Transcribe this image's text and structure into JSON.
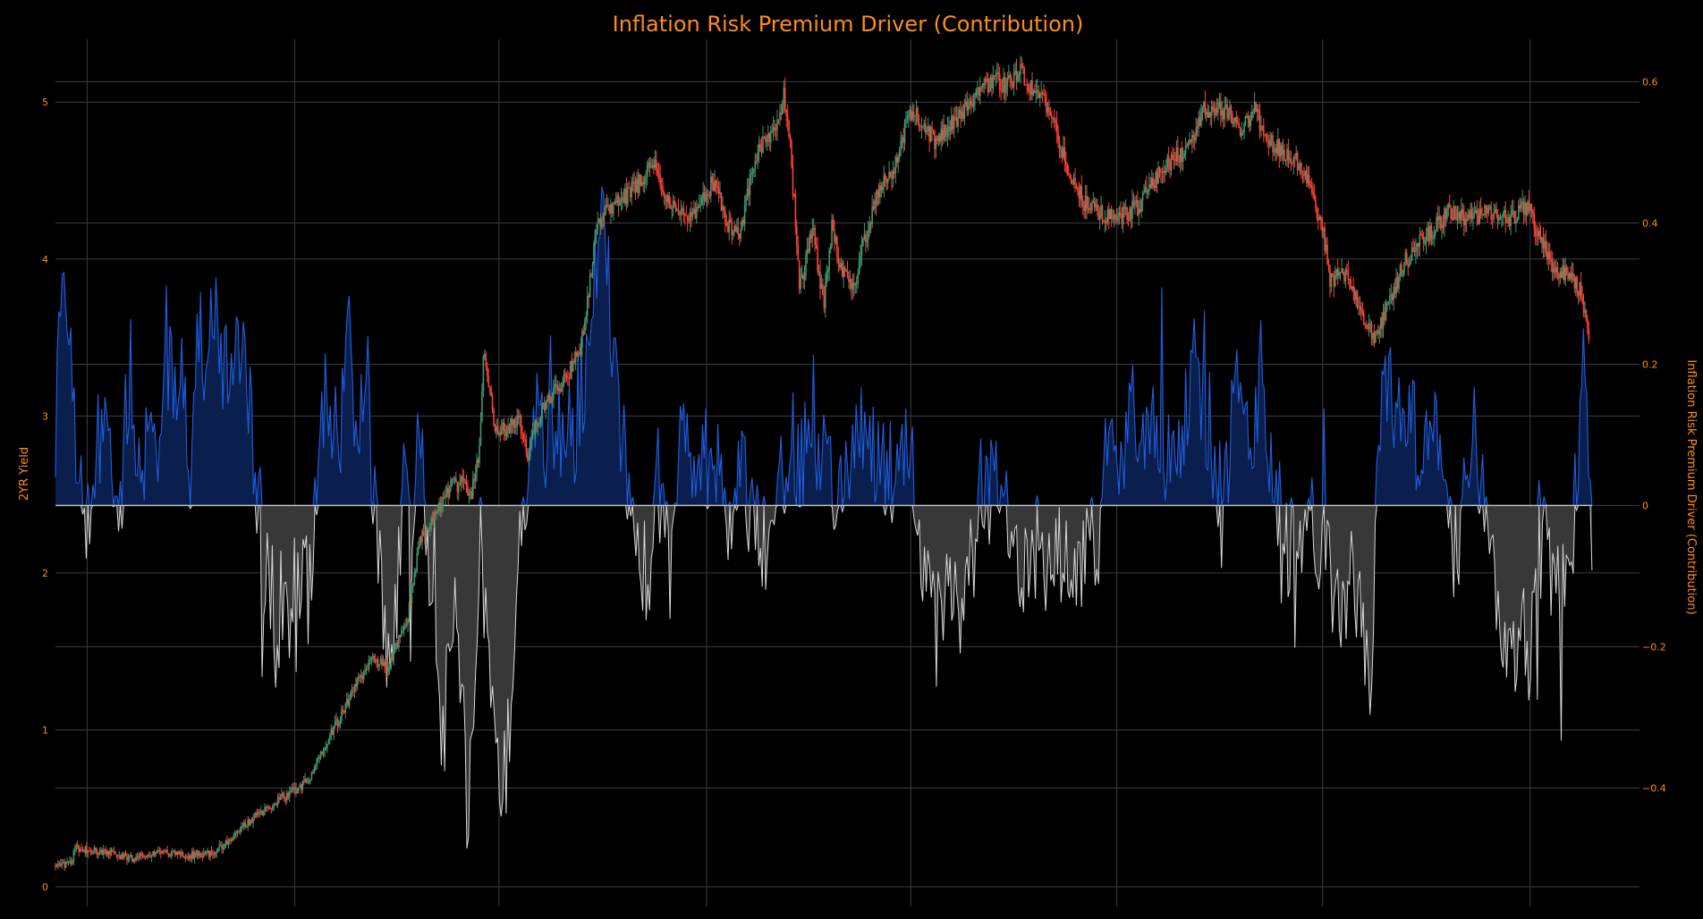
{
  "chart_data": {
    "type": "candlestick+area",
    "title": "Inflation Risk Premium Driver (Contribution)",
    "left_axis": {
      "label": "2YR Yield",
      "range": [
        0,
        5.4
      ],
      "ticks": [
        0,
        1,
        2,
        3,
        4,
        5
      ]
    },
    "right_axis": {
      "label": "Inflation Risk Premium Driver (Contribution)",
      "range": [
        -0.54,
        0.66
      ],
      "ticks": [
        -0.4,
        -0.2,
        0,
        0.2,
        0.4,
        0.6
      ],
      "tick_labels": [
        "−0.4",
        "−0.2",
        "0",
        "0.2",
        "0.4",
        "0.6"
      ]
    },
    "x_axis": {
      "range": [
        0,
        1
      ],
      "gridlines": [
        0.02,
        0.151,
        0.28,
        0.411,
        0.54,
        0.67,
        0.8,
        0.931
      ],
      "tick_labels": []
    },
    "grid": true,
    "colors": {
      "up": "#3d9970",
      "down": "#ff4136",
      "positive_line": "#1f5fe0",
      "positive_fill": "#0a1f4d",
      "negative_line": "#d9d9d9",
      "negative_fill": "#383838",
      "zero_line": "#c8c8c8",
      "accent": "#ff8c1a"
    },
    "yield_anchors": [
      [
        0,
        0.14
      ],
      [
        0.01,
        0.14
      ],
      [
        0.012,
        0.25
      ],
      [
        0.03,
        0.22
      ],
      [
        0.05,
        0.18
      ],
      [
        0.07,
        0.22
      ],
      [
        0.085,
        0.2
      ],
      [
        0.1,
        0.22
      ],
      [
        0.115,
        0.35
      ],
      [
        0.13,
        0.48
      ],
      [
        0.145,
        0.58
      ],
      [
        0.16,
        0.68
      ],
      [
        0.17,
        0.9
      ],
      [
        0.178,
        1.05
      ],
      [
        0.19,
        1.3
      ],
      [
        0.2,
        1.45
      ],
      [
        0.21,
        1.4
      ],
      [
        0.222,
        1.7
      ],
      [
        0.23,
        2.2
      ],
      [
        0.238,
        2.35
      ],
      [
        0.25,
        2.55
      ],
      [
        0.258,
        2.58
      ],
      [
        0.262,
        2.48
      ],
      [
        0.268,
        2.8
      ],
      [
        0.27,
        3.4
      ],
      [
        0.278,
        2.9
      ],
      [
        0.285,
        2.92
      ],
      [
        0.292,
        3.0
      ],
      [
        0.298,
        2.75
      ],
      [
        0.305,
        3.0
      ],
      [
        0.312,
        3.1
      ],
      [
        0.325,
        3.3
      ],
      [
        0.333,
        3.5
      ],
      [
        0.34,
        4.1
      ],
      [
        0.345,
        4.3
      ],
      [
        0.36,
        4.4
      ],
      [
        0.37,
        4.5
      ],
      [
        0.377,
        4.62
      ],
      [
        0.385,
        4.4
      ],
      [
        0.395,
        4.3
      ],
      [
        0.405,
        4.3
      ],
      [
        0.415,
        4.5
      ],
      [
        0.425,
        4.2
      ],
      [
        0.432,
        4.15
      ],
      [
        0.44,
        4.6
      ],
      [
        0.448,
        4.75
      ],
      [
        0.455,
        4.85
      ],
      [
        0.46,
        5.05
      ],
      [
        0.464,
        4.7
      ],
      [
        0.466,
        4.4
      ],
      [
        0.47,
        3.8
      ],
      [
        0.478,
        4.2
      ],
      [
        0.485,
        3.7
      ],
      [
        0.49,
        4.2
      ],
      [
        0.497,
        3.9
      ],
      [
        0.505,
        3.8
      ],
      [
        0.51,
        4.1
      ],
      [
        0.52,
        4.45
      ],
      [
        0.53,
        4.6
      ],
      [
        0.54,
        4.95
      ],
      [
        0.548,
        4.85
      ],
      [
        0.555,
        4.75
      ],
      [
        0.57,
        4.9
      ],
      [
        0.582,
        5.05
      ],
      [
        0.592,
        5.15
      ],
      [
        0.6,
        5.1
      ],
      [
        0.61,
        5.2
      ],
      [
        0.618,
        5.05
      ],
      [
        0.628,
        4.95
      ],
      [
        0.638,
        4.6
      ],
      [
        0.65,
        4.35
      ],
      [
        0.66,
        4.3
      ],
      [
        0.67,
        4.25
      ],
      [
        0.685,
        4.35
      ],
      [
        0.7,
        4.6
      ],
      [
        0.715,
        4.7
      ],
      [
        0.725,
        4.95
      ],
      [
        0.74,
        4.95
      ],
      [
        0.748,
        4.8
      ],
      [
        0.757,
        4.95
      ],
      [
        0.765,
        4.75
      ],
      [
        0.775,
        4.7
      ],
      [
        0.785,
        4.6
      ],
      [
        0.792,
        4.45
      ],
      [
        0.8,
        4.2
      ],
      [
        0.805,
        3.85
      ],
      [
        0.812,
        3.9
      ],
      [
        0.818,
        3.85
      ],
      [
        0.825,
        3.65
      ],
      [
        0.832,
        3.5
      ],
      [
        0.842,
        3.7
      ],
      [
        0.85,
        3.95
      ],
      [
        0.86,
        4.1
      ],
      [
        0.87,
        4.2
      ],
      [
        0.88,
        4.3
      ],
      [
        0.89,
        4.25
      ],
      [
        0.9,
        4.28
      ],
      [
        0.91,
        4.3
      ],
      [
        0.92,
        4.25
      ],
      [
        0.93,
        4.35
      ],
      [
        0.936,
        4.15
      ],
      [
        0.945,
        3.95
      ],
      [
        0.955,
        3.9
      ],
      [
        0.963,
        3.8
      ],
      [
        0.966,
        3.6
      ],
      [
        0.968,
        3.45
      ]
    ],
    "contribution_anchors": [
      [
        0,
        0.12
      ],
      [
        0.004,
        0.28
      ],
      [
        0.008,
        0.2
      ],
      [
        0.012,
        0.14
      ],
      [
        0.016,
        0.02
      ],
      [
        0.02,
        -0.04
      ],
      [
        0.025,
        0.06
      ],
      [
        0.03,
        0.12
      ],
      [
        0.035,
        0.05
      ],
      [
        0.04,
        -0.02
      ],
      [
        0.045,
        0.14
      ],
      [
        0.05,
        0.08
      ],
      [
        0.055,
        -0.03
      ],
      [
        0.06,
        0.2
      ],
      [
        0.065,
        0.1
      ],
      [
        0.07,
        0.24
      ],
      [
        0.075,
        0.12
      ],
      [
        0.08,
        0.22
      ],
      [
        0.085,
        0.06
      ],
      [
        0.09,
        0.26
      ],
      [
        0.095,
        0.18
      ],
      [
        0.1,
        0.3
      ],
      [
        0.105,
        0.2
      ],
      [
        0.11,
        0.16
      ],
      [
        0.115,
        0.26
      ],
      [
        0.12,
        0.22
      ],
      [
        0.125,
        0.08
      ],
      [
        0.13,
        -0.04
      ],
      [
        0.135,
        -0.12
      ],
      [
        0.14,
        -0.18
      ],
      [
        0.145,
        -0.1
      ],
      [
        0.15,
        -0.22
      ],
      [
        0.155,
        -0.06
      ],
      [
        0.16,
        -0.14
      ],
      [
        0.165,
        0.02
      ],
      [
        0.17,
        0.18
      ],
      [
        0.175,
        0.14
      ],
      [
        0.18,
        0.09
      ],
      [
        0.185,
        0.22
      ],
      [
        0.19,
        0.12
      ],
      [
        0.195,
        0.2
      ],
      [
        0.2,
        0.06
      ],
      [
        0.205,
        -0.08
      ],
      [
        0.21,
        -0.2
      ],
      [
        0.215,
        -0.14
      ],
      [
        0.22,
        0.02
      ],
      [
        0.225,
        -0.05
      ],
      [
        0.23,
        0.1
      ],
      [
        0.235,
        -0.1
      ],
      [
        0.24,
        -0.2
      ],
      [
        0.245,
        -0.34
      ],
      [
        0.25,
        -0.12
      ],
      [
        0.255,
        -0.26
      ],
      [
        0.26,
        -0.44
      ],
      [
        0.265,
        -0.2
      ],
      [
        0.27,
        -0.1
      ],
      [
        0.275,
        -0.3
      ],
      [
        0.28,
        -0.42
      ],
      [
        0.285,
        -0.36
      ],
      [
        0.29,
        -0.14
      ],
      [
        0.295,
        0.02
      ],
      [
        0.3,
        0.08
      ],
      [
        0.305,
        0.14
      ],
      [
        0.31,
        0.06
      ],
      [
        0.315,
        0.12
      ],
      [
        0.32,
        0.1
      ],
      [
        0.325,
        0.06
      ],
      [
        0.33,
        0.14
      ],
      [
        0.335,
        0.2
      ],
      [
        0.34,
        0.34
      ],
      [
        0.345,
        0.4
      ],
      [
        0.35,
        0.3
      ],
      [
        0.355,
        0.14
      ],
      [
        0.36,
        0.06
      ],
      [
        0.365,
        -0.04
      ],
      [
        0.37,
        -0.1
      ],
      [
        0.375,
        -0.08
      ],
      [
        0.38,
        0.06
      ],
      [
        0.385,
        -0.08
      ],
      [
        0.39,
        -0.04
      ],
      [
        0.395,
        0.08
      ],
      [
        0.4,
        0.1
      ],
      [
        0.405,
        -0.02
      ],
      [
        0.41,
        0.06
      ],
      [
        0.415,
        0.1
      ],
      [
        0.42,
        0.04
      ],
      [
        0.425,
        -0.04
      ],
      [
        0.43,
        0.08
      ],
      [
        0.435,
        0.02
      ],
      [
        0.44,
        -0.02
      ],
      [
        0.445,
        -0.06
      ],
      [
        0.45,
        -0.04
      ],
      [
        0.455,
        -0.02
      ],
      [
        0.46,
        0.06
      ],
      [
        0.465,
        0.1
      ],
      [
        0.47,
        0.06
      ],
      [
        0.475,
        0.08
      ],
      [
        0.48,
        0.04
      ],
      [
        0.485,
        0.1
      ],
      [
        0.49,
        0.02
      ],
      [
        0.5,
        0.04
      ],
      [
        0.505,
        0.08
      ],
      [
        0.51,
        0.1
      ],
      [
        0.515,
        0.06
      ],
      [
        0.52,
        0.08
      ],
      [
        0.525,
        0.04
      ],
      [
        0.53,
        0.02
      ],
      [
        0.535,
        0.08
      ],
      [
        0.54,
        0.06
      ],
      [
        0.545,
        -0.04
      ],
      [
        0.55,
        -0.1
      ],
      [
        0.555,
        -0.16
      ],
      [
        0.56,
        -0.12
      ],
      [
        0.565,
        -0.08
      ],
      [
        0.57,
        -0.14
      ],
      [
        0.575,
        -0.16
      ],
      [
        0.58,
        -0.06
      ],
      [
        0.585,
        0.04
      ],
      [
        0.59,
        0.06
      ],
      [
        0.6,
        0.02
      ],
      [
        0.605,
        -0.04
      ],
      [
        0.61,
        -0.08
      ],
      [
        0.615,
        -0.12
      ],
      [
        0.62,
        -0.06
      ],
      [
        0.625,
        -0.1
      ],
      [
        0.63,
        -0.08
      ],
      [
        0.635,
        -0.06
      ],
      [
        0.64,
        -0.1
      ],
      [
        0.645,
        -0.12
      ],
      [
        0.65,
        -0.08
      ],
      [
        0.655,
        -0.05
      ],
      [
        0.66,
        -0.04
      ],
      [
        0.665,
        0.12
      ],
      [
        0.67,
        0.1
      ],
      [
        0.675,
        0.08
      ],
      [
        0.68,
        0.12
      ],
      [
        0.685,
        0.06
      ],
      [
        0.69,
        0.08
      ],
      [
        0.695,
        0.1
      ],
      [
        0.7,
        0.08
      ],
      [
        0.705,
        0.04
      ],
      [
        0.71,
        0.06
      ],
      [
        0.715,
        0.16
      ],
      [
        0.72,
        0.2
      ],
      [
        0.725,
        0.14
      ],
      [
        0.73,
        0.1
      ],
      [
        0.735,
        0.02
      ],
      [
        0.74,
        0.06
      ],
      [
        0.745,
        0.2
      ],
      [
        0.75,
        0.18
      ],
      [
        0.755,
        0.1
      ],
      [
        0.76,
        0.14
      ],
      [
        0.765,
        0.06
      ],
      [
        0.77,
        0.04
      ],
      [
        0.775,
        -0.04
      ],
      [
        0.78,
        -0.06
      ],
      [
        0.785,
        -0.04
      ],
      [
        0.79,
        0.02
      ],
      [
        0.795,
        -0.04
      ],
      [
        0.8,
        -0.06
      ],
      [
        0.805,
        -0.1
      ],
      [
        0.81,
        -0.12
      ],
      [
        0.815,
        -0.16
      ],
      [
        0.82,
        -0.08
      ],
      [
        0.825,
        -0.2
      ],
      [
        0.83,
        -0.26
      ],
      [
        0.835,
        0.06
      ],
      [
        0.84,
        0.2
      ],
      [
        0.845,
        0.14
      ],
      [
        0.85,
        0.1
      ],
      [
        0.855,
        0.12
      ],
      [
        0.86,
        0.08
      ],
      [
        0.865,
        0.14
      ],
      [
        0.87,
        0.1
      ],
      [
        0.875,
        0.04
      ],
      [
        0.88,
        -0.04
      ],
      [
        0.885,
        -0.08
      ],
      [
        0.89,
        0.06
      ],
      [
        0.895,
        0.1
      ],
      [
        0.9,
        0.04
      ],
      [
        0.905,
        -0.08
      ],
      [
        0.91,
        -0.12
      ],
      [
        0.915,
        -0.2
      ],
      [
        0.92,
        -0.24
      ],
      [
        0.925,
        -0.14
      ],
      [
        0.93,
        -0.22
      ],
      [
        0.935,
        -0.12
      ],
      [
        0.94,
        -0.04
      ],
      [
        0.945,
        -0.1
      ],
      [
        0.95,
        -0.14
      ],
      [
        0.955,
        -0.08
      ],
      [
        0.96,
        0.02
      ],
      [
        0.963,
        0.1
      ],
      [
        0.966,
        0.24
      ],
      [
        0.968,
        0.06
      ],
      [
        0.97,
        -0.08
      ]
    ]
  }
}
